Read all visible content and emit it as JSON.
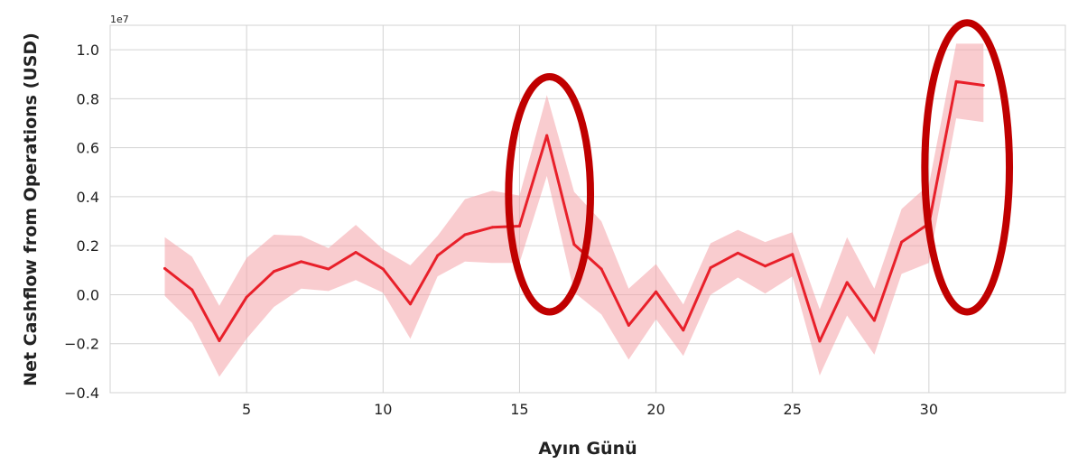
{
  "chart_data": {
    "type": "line",
    "title": "",
    "xlabel": "Ayın Günü",
    "ylabel": "Net Cashflow from Operations (USD)",
    "y_scale_label": "1e7",
    "xlim": [
      0,
      35
    ],
    "ylim": [
      -0.4,
      1.1
    ],
    "x_ticks": [
      5,
      10,
      15,
      20,
      25,
      30
    ],
    "x_tick_labels": [
      "5",
      "10",
      "15",
      "20",
      "25",
      "30"
    ],
    "y_ticks": [
      -0.4,
      -0.2,
      0.0,
      0.2,
      0.4,
      0.6,
      0.8,
      1.0
    ],
    "y_tick_labels": [
      "−0.4",
      "−0.2",
      "0.0",
      "0.2",
      "0.4",
      "0.6",
      "0.8",
      "1.0"
    ],
    "grid": true,
    "colors": {
      "line": "#e8202a",
      "band": "#f4a3a8",
      "highlight": "#c00000",
      "grid": "#d3d3d3"
    },
    "series": [
      {
        "x": [
          2,
          3,
          4,
          5,
          6,
          7,
          8,
          9,
          10,
          11,
          12,
          13,
          14,
          15,
          16,
          17,
          18,
          19,
          20,
          21,
          22,
          23,
          24,
          25,
          26,
          27,
          28,
          29,
          30,
          31,
          32
        ],
        "values": [
          0.107,
          0.02,
          -0.188,
          -0.01,
          0.095,
          0.135,
          0.105,
          0.173,
          0.105,
          -0.038,
          0.16,
          0.245,
          0.275,
          0.28,
          0.65,
          0.205,
          0.105,
          -0.125,
          0.012,
          -0.145,
          0.11,
          0.17,
          0.117,
          0.165,
          -0.19,
          0.05,
          -0.105,
          0.215,
          0.29,
          0.87,
          0.855
        ],
        "ci_upper": [
          0.235,
          0.155,
          -0.045,
          0.15,
          0.245,
          0.24,
          0.19,
          0.285,
          0.185,
          0.12,
          0.24,
          0.39,
          0.425,
          0.405,
          0.815,
          0.42,
          0.3,
          0.025,
          0.125,
          -0.04,
          0.21,
          0.265,
          0.215,
          0.255,
          -0.06,
          0.235,
          0.025,
          0.35,
          0.45,
          1.025,
          1.025
        ],
        "ci_lower": [
          -0.005,
          -0.115,
          -0.335,
          -0.18,
          -0.05,
          0.025,
          0.015,
          0.06,
          0.008,
          -0.18,
          0.075,
          0.135,
          0.13,
          0.13,
          0.485,
          0.01,
          -0.08,
          -0.265,
          -0.1,
          -0.25,
          0.0,
          0.07,
          0.005,
          0.075,
          -0.33,
          -0.085,
          -0.245,
          0.085,
          0.13,
          0.72,
          0.705
        ]
      }
    ],
    "annotations": [
      {
        "type": "ellipse",
        "x_center": 16.1,
        "y_center": 0.41,
        "x_radius": 1.5,
        "y_radius": 0.48
      },
      {
        "type": "ellipse",
        "x_center": 31.4,
        "y_center": 0.52,
        "x_radius": 1.55,
        "y_radius": 0.59
      }
    ]
  }
}
